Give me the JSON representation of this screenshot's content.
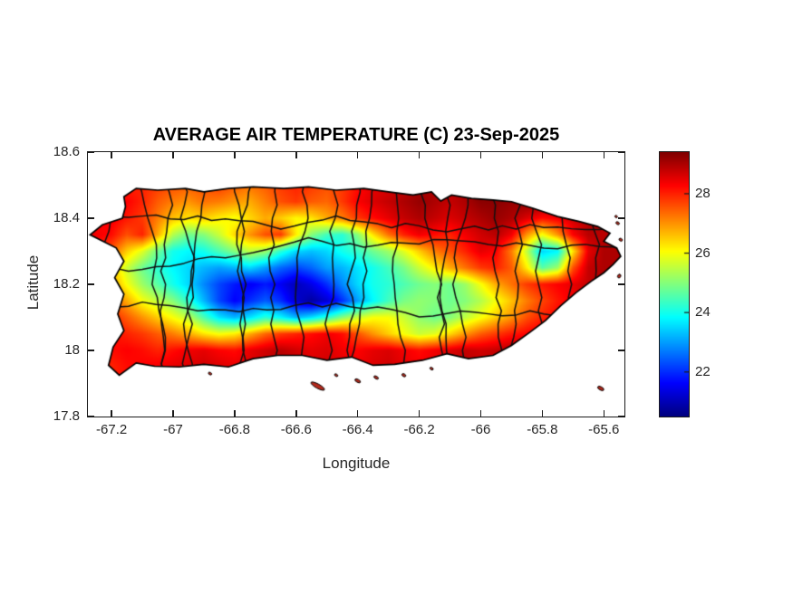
{
  "title": "AVERAGE AIR TEMPERATURE (C) 23-Sep-2025",
  "axes": {
    "xlabel": "Longitude",
    "ylabel": "Latitude",
    "x_ticks": {
      "values": [
        -67.2,
        -67.0,
        -66.8,
        -66.6,
        -66.4,
        -66.2,
        -66.0,
        -65.8,
        -65.6
      ],
      "labels": [
        "-67.2",
        "-67",
        "-66.8",
        "-66.6",
        "-66.4",
        "-66.2",
        "-66",
        "-65.8",
        "-65.6"
      ]
    },
    "y_ticks": {
      "values": [
        18.6,
        18.4,
        18.2,
        18.0,
        17.8
      ],
      "labels": [
        "18.6",
        "18.4",
        "18.2",
        "18",
        "17.8"
      ]
    }
  },
  "colorbar": {
    "tick_values": [
      28,
      26,
      24,
      22
    ],
    "tick_labels": [
      "28",
      "26",
      "24",
      "22"
    ],
    "vmin": 20.5,
    "vmax": 29.4
  },
  "colors": {
    "axis": "#1a1a1a",
    "tick_text": "#262626",
    "boundary": "#111111",
    "coastline": "#000000",
    "islet_fill": "#b5291c",
    "background": "#ffffff"
  },
  "chart_data": {
    "type": "heatmap",
    "title": "AVERAGE AIR TEMPERATURE (C) 23-Sep-2025",
    "xlabel": "Longitude",
    "ylabel": "Latitude",
    "units": "C",
    "colormap": "jet",
    "grid": false,
    "xlim": [
      -67.277,
      -65.533
    ],
    "ylim": [
      17.8,
      18.6
    ],
    "clim": [
      20.5,
      29.4
    ],
    "lon": [
      -67.25,
      -67.2,
      -67.15,
      -67.1,
      -67.05,
      -67.0,
      -66.95,
      -66.9,
      -66.85,
      -66.8,
      -66.75,
      -66.7,
      -66.65,
      -66.6,
      -66.55,
      -66.5,
      -66.45,
      -66.4,
      -66.35,
      -66.3,
      -66.25,
      -66.2,
      -66.15,
      -66.1,
      -66.05,
      -66.0,
      -65.95,
      -65.9,
      -65.85,
      -65.8,
      -65.75,
      -65.7,
      -65.65,
      -65.6
    ],
    "lat": [
      18.5,
      18.45,
      18.4,
      18.35,
      18.3,
      18.25,
      18.2,
      18.15,
      18.1,
      18.05,
      18.0,
      17.95
    ],
    "values": [
      [
        27.6,
        27.8,
        28.0,
        28.0,
        27.8,
        27.6,
        27.5,
        27.6,
        27.8,
        27.5,
        27.3,
        27.5,
        27.8,
        28.0,
        27.8,
        27.6,
        27.8,
        28.2,
        28.5,
        28.6,
        28.8,
        29.0,
        29.0,
        28.8,
        29.0,
        29.2,
        29.2,
        29.0,
        29.2,
        29.3,
        29.2,
        29.0,
        28.8,
        28.6
      ],
      [
        27.8,
        28.1,
        28.3,
        28.0,
        27.5,
        27.2,
        27.0,
        27.3,
        27.2,
        27.0,
        26.8,
        27.2,
        27.6,
        27.8,
        27.5,
        27.4,
        27.8,
        28.3,
        28.6,
        28.8,
        29.0,
        29.2,
        29.0,
        28.8,
        29.0,
        29.3,
        29.3,
        29.2,
        29.3,
        29.4,
        29.2,
        29.0,
        28.9,
        28.8
      ],
      [
        28.2,
        28.4,
        28.1,
        27.8,
        27.2,
        26.6,
        26.3,
        26.5,
        26.2,
        26.0,
        26.4,
        26.8,
        26.5,
        26.1,
        26.3,
        26.8,
        27.2,
        27.8,
        28.2,
        28.5,
        28.8,
        29.0,
        28.8,
        28.6,
        28.8,
        29.0,
        29.2,
        29.0,
        28.6,
        28.2,
        28.4,
        28.7,
        29.0,
        28.9
      ],
      [
        28.4,
        28.2,
        27.6,
        28.0,
        26.8,
        25.4,
        24.8,
        25.0,
        25.6,
        26.4,
        27.0,
        27.6,
        27.8,
        26.2,
        25.0,
        24.4,
        24.2,
        25.0,
        26.3,
        27.3,
        28.0,
        28.4,
        28.2,
        28.0,
        28.4,
        28.7,
        28.9,
        28.4,
        27.0,
        26.0,
        27.0,
        28.3,
        28.9,
        28.9
      ],
      [
        28.0,
        27.5,
        26.5,
        25.8,
        24.8,
        24.0,
        23.8,
        24.0,
        24.5,
        25.0,
        25.5,
        25.2,
        24.2,
        23.5,
        23.3,
        23.5,
        24.0,
        24.3,
        24.8,
        25.2,
        25.8,
        26.5,
        27.2,
        27.6,
        28.0,
        28.5,
        28.3,
        27.2,
        25.5,
        23.5,
        23.8,
        26.3,
        28.5,
        29.0
      ],
      [
        27.2,
        26.6,
        25.6,
        24.8,
        24.2,
        23.8,
        23.5,
        23.2,
        23.0,
        23.2,
        23.5,
        23.0,
        22.5,
        22.2,
        22.5,
        23.0,
        23.2,
        23.6,
        24.0,
        24.4,
        24.9,
        25.6,
        26.2,
        26.8,
        27.3,
        27.8,
        28.0,
        27.5,
        26.2,
        24.6,
        25.2,
        27.6,
        28.8,
        29.0
      ],
      [
        27.6,
        27.0,
        26.0,
        25.2,
        24.6,
        24.0,
        23.5,
        22.8,
        22.2,
        21.8,
        21.5,
        21.8,
        21.5,
        21.0,
        21.4,
        22.0,
        22.8,
        23.5,
        24.0,
        24.2,
        24.5,
        24.8,
        25.0,
        24.8,
        25.2,
        26.0,
        26.8,
        27.3,
        27.8,
        28.1,
        28.3,
        28.5,
        28.8,
        29.0
      ],
      [
        28.0,
        27.5,
        26.8,
        26.0,
        25.5,
        25.0,
        24.2,
        23.2,
        22.2,
        21.6,
        22.0,
        22.4,
        22.0,
        21.2,
        20.8,
        21.2,
        22.0,
        23.0,
        23.8,
        24.4,
        24.9,
        25.1,
        25.0,
        24.8,
        25.0,
        25.4,
        26.0,
        26.6,
        27.2,
        27.7,
        28.1,
        28.4,
        28.7,
        28.9
      ],
      [
        28.2,
        28.0,
        27.5,
        27.0,
        26.5,
        26.0,
        25.5,
        24.5,
        23.6,
        23.2,
        23.6,
        24.2,
        23.8,
        23.2,
        23.6,
        24.2,
        25.0,
        25.6,
        26.0,
        26.0,
        25.6,
        25.1,
        24.8,
        25.0,
        25.5,
        26.0,
        26.5,
        27.0,
        27.6,
        28.0,
        28.3,
        28.6,
        28.8,
        29.0
      ],
      [
        28.3,
        28.2,
        28.0,
        27.8,
        27.5,
        27.2,
        26.8,
        26.3,
        26.0,
        26.2,
        26.8,
        27.4,
        27.8,
        28.0,
        28.2,
        28.4,
        28.2,
        27.6,
        27.0,
        26.5,
        26.0,
        25.6,
        25.8,
        26.4,
        27.0,
        27.5,
        27.8,
        28.1,
        28.3,
        28.5,
        28.7,
        28.9,
        29.0,
        29.1
      ],
      [
        28.0,
        28.2,
        28.3,
        28.2,
        28.0,
        28.2,
        28.4,
        28.5,
        28.3,
        28.2,
        28.5,
        28.7,
        28.9,
        28.7,
        28.5,
        28.6,
        28.4,
        28.3,
        28.5,
        28.6,
        28.4,
        28.2,
        28.4,
        28.6,
        28.8,
        28.7,
        28.8,
        29.0,
        29.0,
        29.1,
        29.2,
        29.2,
        29.1,
        29.0
      ],
      [
        27.9,
        28.0,
        28.2,
        28.3,
        28.4,
        28.5,
        28.6,
        28.7,
        28.6,
        28.5,
        28.6,
        28.8,
        29.0,
        28.8,
        28.6,
        28.7,
        28.5,
        28.4,
        28.6,
        28.7,
        28.5,
        28.4,
        28.5,
        28.7,
        28.9,
        28.8,
        28.9,
        29.0,
        29.1,
        29.2,
        29.2,
        29.1,
        29.0,
        29.0
      ]
    ],
    "island_outline": [
      [
        -67.16,
        18.465
      ],
      [
        -67.12,
        18.49
      ],
      [
        -67.05,
        18.485
      ],
      [
        -66.96,
        18.49
      ],
      [
        -66.9,
        18.48
      ],
      [
        -66.82,
        18.49
      ],
      [
        -66.74,
        18.495
      ],
      [
        -66.64,
        18.49
      ],
      [
        -66.56,
        18.495
      ],
      [
        -66.47,
        18.485
      ],
      [
        -66.38,
        18.49
      ],
      [
        -66.3,
        18.48
      ],
      [
        -66.22,
        18.47
      ],
      [
        -66.16,
        18.48
      ],
      [
        -66.13,
        18.452
      ],
      [
        -66.095,
        18.47
      ],
      [
        -66.03,
        18.46
      ],
      [
        -65.96,
        18.455
      ],
      [
        -65.9,
        18.45
      ],
      [
        -65.83,
        18.43
      ],
      [
        -65.75,
        18.405
      ],
      [
        -65.68,
        18.39
      ],
      [
        -65.62,
        18.375
      ],
      [
        -65.58,
        18.355
      ],
      [
        -65.6,
        18.33
      ],
      [
        -65.558,
        18.31
      ],
      [
        -65.545,
        18.285
      ],
      [
        -65.57,
        18.26
      ],
      [
        -65.6,
        18.235
      ],
      [
        -65.64,
        18.21
      ],
      [
        -65.69,
        18.175
      ],
      [
        -65.74,
        18.135
      ],
      [
        -65.79,
        18.09
      ],
      [
        -65.84,
        18.055
      ],
      [
        -65.9,
        18.015
      ],
      [
        -65.96,
        17.985
      ],
      [
        -66.04,
        17.975
      ],
      [
        -66.11,
        17.99
      ],
      [
        -66.19,
        17.97
      ],
      [
        -66.28,
        17.958
      ],
      [
        -66.35,
        17.955
      ],
      [
        -66.42,
        17.98
      ],
      [
        -66.5,
        17.97
      ],
      [
        -66.58,
        17.985
      ],
      [
        -66.66,
        17.985
      ],
      [
        -66.74,
        17.975
      ],
      [
        -66.82,
        17.95
      ],
      [
        -66.9,
        17.958
      ],
      [
        -66.98,
        17.95
      ],
      [
        -67.06,
        17.952
      ],
      [
        -67.12,
        17.962
      ],
      [
        -67.175,
        17.925
      ],
      [
        -67.21,
        17.955
      ],
      [
        -67.195,
        18.01
      ],
      [
        -67.16,
        18.06
      ],
      [
        -67.18,
        18.11
      ],
      [
        -67.16,
        18.17
      ],
      [
        -67.19,
        18.22
      ],
      [
        -67.16,
        18.27
      ],
      [
        -67.185,
        18.31
      ],
      [
        -67.27,
        18.35
      ],
      [
        -67.23,
        18.38
      ],
      [
        -67.165,
        18.4
      ],
      [
        -67.155,
        18.435
      ]
    ],
    "islets": [
      [
        -66.53,
        17.892,
        0.05,
        0.013
      ],
      [
        -66.47,
        17.925,
        0.012,
        0.007
      ],
      [
        -66.4,
        17.908,
        0.02,
        0.009
      ],
      [
        -66.34,
        17.918,
        0.016,
        0.008
      ],
      [
        -66.25,
        17.925,
        0.014,
        0.008
      ],
      [
        -66.16,
        17.945,
        0.012,
        0.007
      ],
      [
        -65.61,
        17.885,
        0.022,
        0.01
      ],
      [
        -65.555,
        18.385,
        0.012,
        0.008
      ],
      [
        -65.545,
        18.335,
        0.012,
        0.008
      ],
      [
        -65.55,
        18.225,
        0.01,
        0.012
      ],
      [
        -65.56,
        18.405,
        0.009,
        0.006
      ],
      [
        -66.88,
        17.93,
        0.012,
        0.007
      ]
    ]
  }
}
